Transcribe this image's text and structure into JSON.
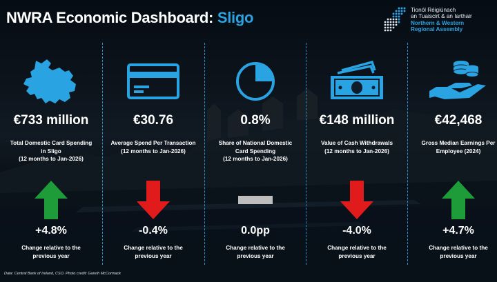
{
  "header": {
    "title_prefix": "NWRA Economic Dashboard: ",
    "title_place": "Sligo"
  },
  "logo": {
    "irish_line1": "Tionól Réigiúnach",
    "irish_line2": "an Tuaiscirt & an Iarthair",
    "english_line1": "Northern & Western",
    "english_line2": "Regional Assembly"
  },
  "colors": {
    "accent": "#29a3e2",
    "up": "#1f9c3a",
    "down": "#e11b1b",
    "neutral": "#bdbdbd",
    "text": "#ffffff"
  },
  "metrics": [
    {
      "icon": "county-map-icon",
      "value": "€733 million",
      "label": "Total Domestic Card Spending\nin Sligo\n(12 months to Jan-2026)",
      "change": "+4.8%",
      "direction": "up",
      "change_label": "Change relative to the\nprevious year"
    },
    {
      "icon": "credit-card-icon",
      "value": "€30.76",
      "label": "Average Spend Per Transaction\n(12 months to Jan-2026)",
      "change": "-0.4%",
      "direction": "down",
      "change_label": "Change relative to the\nprevious year"
    },
    {
      "icon": "pie-chart-icon",
      "value": "0.8%",
      "label": "Share of National Domestic\nCard Spending\n(12 months to Jan-2026)",
      "change": "0.0pp",
      "direction": "neutral",
      "change_label": "Change relative to the\nprevious year"
    },
    {
      "icon": "cash-icon",
      "value": "€148 million",
      "label": "Value of Cash Withdrawals\n(12 months to Jan-2026)",
      "change": "-4.0%",
      "direction": "down",
      "change_label": "Change relative to the\nprevious year"
    },
    {
      "icon": "earnings-hand-coins-icon",
      "value": "€42,468",
      "label": "Gross Median Earnings Per\nEmployee (2024)",
      "change": "+4.7%",
      "direction": "up",
      "change_label": "Change relative to the\nprevious year"
    }
  ],
  "footer": {
    "source": "Data: Central Bank of Ireland, CSO. Photo credit: Gareth McCormack"
  }
}
